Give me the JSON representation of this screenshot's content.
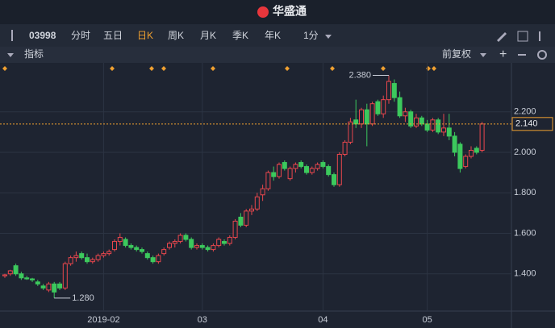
{
  "app": {
    "title": "华盛通",
    "symbol": "03998",
    "periods": [
      "分时",
      "五日",
      "日K",
      "周K",
      "月K",
      "季K",
      "年K",
      "1分"
    ],
    "indicator": "指标",
    "adjust": "前复权"
  },
  "chart_data": {
    "type": "candlestick",
    "categories": [
      null,
      null,
      null,
      null,
      null,
      null,
      null,
      null,
      null,
      null,
      null,
      null,
      null,
      null,
      null,
      null,
      null,
      null,
      "2019-02",
      null,
      null,
      null,
      null,
      null,
      null,
      null,
      null,
      null,
      null,
      null,
      null,
      null,
      null,
      null,
      null,
      null,
      "03",
      null,
      null,
      null,
      null,
      null,
      null,
      null,
      null,
      null,
      null,
      null,
      null,
      null,
      null,
      null,
      null,
      null,
      null,
      null,
      null,
      null,
      "04",
      null,
      null,
      null,
      null,
      null,
      null,
      null,
      null,
      null,
      null,
      null,
      null,
      null,
      null,
      null,
      null,
      null,
      null,
      "05",
      null,
      null,
      null,
      null,
      null,
      null,
      null,
      null,
      null,
      null
    ],
    "open": [
      1.39,
      1.4,
      1.44,
      1.4,
      1.38,
      1.375,
      1.36,
      1.34,
      1.32,
      1.35,
      1.35,
      1.33,
      1.45,
      1.48,
      1.5,
      1.48,
      1.46,
      1.47,
      1.49,
      1.5,
      1.52,
      1.56,
      1.57,
      1.54,
      1.53,
      1.52,
      1.5,
      1.48,
      1.46,
      1.5,
      1.53,
      1.55,
      1.56,
      1.59,
      1.57,
      1.53,
      1.54,
      1.53,
      1.52,
      1.54,
      1.56,
      1.55,
      1.58,
      1.68,
      1.64,
      1.71,
      1.72,
      1.79,
      1.82,
      1.9,
      1.88,
      1.95,
      1.87,
      1.92,
      1.95,
      1.93,
      1.9,
      1.92,
      1.95,
      1.93,
      1.89,
      1.84,
      1.99,
      2.05,
      2.16,
      2.14,
      2.21,
      2.14,
      2.25,
      2.19,
      2.26,
      2.34,
      2.27,
      2.18,
      2.2,
      2.13,
      2.17,
      2.14,
      2.11,
      2.16,
      2.1,
      2.12,
      2.08,
      2.04,
      1.93,
      1.98,
      2.02,
      2.01
    ],
    "high": [
      1.4,
      1.42,
      1.45,
      1.41,
      1.39,
      1.38,
      1.37,
      1.35,
      1.36,
      1.36,
      1.36,
      1.46,
      1.49,
      1.51,
      1.51,
      1.5,
      1.48,
      1.5,
      1.51,
      1.52,
      1.57,
      1.6,
      1.58,
      1.55,
      1.54,
      1.53,
      1.51,
      1.49,
      1.5,
      1.53,
      1.56,
      1.57,
      1.6,
      1.6,
      1.58,
      1.55,
      1.55,
      1.54,
      1.55,
      1.58,
      1.57,
      1.59,
      1.67,
      1.7,
      1.72,
      1.74,
      1.8,
      1.84,
      1.91,
      1.93,
      1.95,
      1.96,
      1.93,
      1.95,
      1.96,
      1.94,
      1.93,
      1.95,
      1.96,
      1.94,
      1.9,
      2.0,
      2.06,
      2.17,
      2.26,
      2.22,
      2.24,
      2.25,
      2.26,
      2.28,
      2.38,
      2.36,
      2.3,
      2.22,
      2.21,
      2.19,
      2.18,
      2.16,
      2.17,
      2.17,
      2.19,
      2.19,
      2.1,
      2.05,
      1.99,
      2.03,
      2.03,
      2.15
    ],
    "low": [
      1.38,
      1.39,
      1.39,
      1.37,
      1.37,
      1.36,
      1.34,
      1.32,
      1.31,
      1.28,
      1.32,
      1.32,
      1.44,
      1.46,
      1.47,
      1.45,
      1.45,
      1.46,
      1.48,
      1.49,
      1.51,
      1.54,
      1.53,
      1.52,
      1.51,
      1.5,
      1.47,
      1.45,
      1.45,
      1.49,
      1.52,
      1.53,
      1.55,
      1.56,
      1.52,
      1.52,
      1.52,
      1.51,
      1.51,
      1.53,
      1.54,
      1.54,
      1.57,
      1.63,
      1.63,
      1.69,
      1.71,
      1.76,
      1.81,
      1.86,
      1.87,
      1.91,
      1.86,
      1.9,
      1.92,
      1.89,
      1.89,
      1.91,
      1.92,
      1.88,
      1.83,
      1.83,
      1.98,
      2.04,
      2.12,
      2.12,
      2.03,
      2.13,
      2.18,
      2.17,
      2.24,
      2.25,
      2.17,
      2.15,
      2.12,
      2.12,
      2.13,
      2.1,
      2.1,
      2.09,
      2.08,
      2.06,
      1.98,
      1.9,
      1.92,
      1.97,
      1.99,
      2.0
    ],
    "close": [
      1.395,
      1.415,
      1.4,
      1.38,
      1.375,
      1.37,
      1.35,
      1.33,
      1.35,
      1.31,
      1.33,
      1.45,
      1.48,
      1.49,
      1.48,
      1.46,
      1.47,
      1.49,
      1.5,
      1.51,
      1.56,
      1.58,
      1.54,
      1.53,
      1.52,
      1.51,
      1.48,
      1.46,
      1.49,
      1.52,
      1.55,
      1.56,
      1.59,
      1.57,
      1.53,
      1.54,
      1.53,
      1.52,
      1.54,
      1.57,
      1.55,
      1.58,
      1.66,
      1.64,
      1.71,
      1.72,
      1.78,
      1.82,
      1.9,
      1.88,
      1.94,
      1.92,
      1.92,
      1.94,
      1.93,
      1.9,
      1.92,
      1.94,
      1.93,
      1.89,
      1.84,
      1.99,
      2.05,
      2.15,
      2.14,
      2.21,
      2.14,
      2.24,
      2.19,
      2.26,
      2.35,
      2.27,
      2.18,
      2.2,
      2.13,
      2.17,
      2.14,
      2.11,
      2.16,
      2.1,
      2.12,
      2.08,
      2.0,
      1.92,
      1.98,
      2.01,
      2.0,
      2.14
    ],
    "up_color": "#e8474d",
    "down_color": "#3cc95d",
    "high_label": {
      "value": 2.38,
      "label": "2.380"
    },
    "low_label": {
      "value": 1.28,
      "label": "1.280"
    },
    "last_label": {
      "value": 2.14,
      "label": "2.140"
    },
    "ylim": [
      1.22,
      2.39
    ],
    "yticks": [
      {
        "value": 1.4,
        "label": "1.400"
      },
      {
        "value": 1.6,
        "label": "1.600"
      },
      {
        "value": 1.8,
        "label": "1.800"
      },
      {
        "value": 2.0,
        "label": "2.000"
      },
      {
        "value": 2.2,
        "label": "2.200"
      }
    ],
    "grid": true
  }
}
